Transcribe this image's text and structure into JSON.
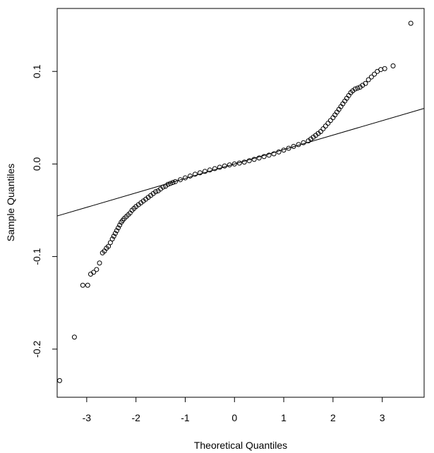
{
  "chart_data": {
    "type": "scatter",
    "title": "",
    "xlabel": "Theoretical Quantiles",
    "ylabel": "Sample Quantiles",
    "xlim": [
      -3.6,
      3.85
    ],
    "ylim": [
      -0.252,
      0.168
    ],
    "x_ticks": [
      -3,
      -2,
      -1,
      0,
      1,
      2,
      3
    ],
    "x_tick_labels": [
      "-3",
      "-2",
      "-1",
      "0",
      "1",
      "2",
      "3"
    ],
    "y_ticks": [
      -0.2,
      -0.1,
      0.0,
      0.1
    ],
    "y_tick_labels": [
      "-0.2",
      "-0.1",
      "0.0",
      "0.1"
    ],
    "grid": false,
    "legend": "none",
    "reference_line": {
      "label": "qq-line",
      "slope": 0.0156,
      "intercept": 0.0
    },
    "points": [
      [
        -3.55,
        -0.234
      ],
      [
        -3.25,
        -0.187
      ],
      [
        -3.08,
        -0.131
      ],
      [
        -2.98,
        -0.131
      ],
      [
        -2.92,
        -0.119
      ],
      [
        -2.86,
        -0.117
      ],
      [
        -2.8,
        -0.114
      ],
      [
        -2.74,
        -0.107
      ],
      [
        -2.68,
        -0.096
      ],
      [
        -2.64,
        -0.094
      ],
      [
        -2.6,
        -0.091
      ],
      [
        -2.56,
        -0.089
      ],
      [
        -2.52,
        -0.085
      ],
      [
        -2.48,
        -0.081
      ],
      [
        -2.45,
        -0.078
      ],
      [
        -2.42,
        -0.075
      ],
      [
        -2.39,
        -0.072
      ],
      [
        -2.36,
        -0.069
      ],
      [
        -2.33,
        -0.066
      ],
      [
        -2.3,
        -0.063
      ],
      [
        -2.27,
        -0.061
      ],
      [
        -2.24,
        -0.059
      ],
      [
        -2.2,
        -0.057
      ],
      [
        -2.16,
        -0.055
      ],
      [
        -2.12,
        -0.053
      ],
      [
        -2.08,
        -0.05
      ],
      [
        -2.04,
        -0.048
      ],
      [
        -2.0,
        -0.046
      ],
      [
        -1.95,
        -0.044
      ],
      [
        -1.9,
        -0.042
      ],
      [
        -1.85,
        -0.04
      ],
      [
        -1.8,
        -0.038
      ],
      [
        -1.75,
        -0.036
      ],
      [
        -1.7,
        -0.034
      ],
      [
        -1.65,
        -0.032
      ],
      [
        -1.6,
        -0.03
      ],
      [
        -1.55,
        -0.029
      ],
      [
        -1.5,
        -0.027
      ],
      [
        -1.45,
        -0.025
      ],
      [
        -1.4,
        -0.024
      ],
      [
        -1.35,
        -0.022
      ],
      [
        -1.3,
        -0.021
      ],
      [
        -1.25,
        -0.02
      ],
      [
        -1.2,
        -0.019
      ],
      [
        -1.1,
        -0.017
      ],
      [
        -1.0,
        -0.015
      ],
      [
        -0.9,
        -0.013
      ],
      [
        -0.8,
        -0.011
      ],
      [
        -0.7,
        -0.0095
      ],
      [
        -0.6,
        -0.008
      ],
      [
        -0.5,
        -0.0065
      ],
      [
        -0.4,
        -0.005
      ],
      [
        -0.3,
        -0.0035
      ],
      [
        -0.2,
        -0.0022
      ],
      [
        -0.1,
        -0.001
      ],
      [
        0.0,
        0.0
      ],
      [
        0.1,
        0.001
      ],
      [
        0.2,
        0.002
      ],
      [
        0.3,
        0.0035
      ],
      [
        0.4,
        0.005
      ],
      [
        0.5,
        0.0065
      ],
      [
        0.6,
        0.008
      ],
      [
        0.7,
        0.0095
      ],
      [
        0.8,
        0.011
      ],
      [
        0.9,
        0.013
      ],
      [
        1.0,
        0.015
      ],
      [
        1.1,
        0.017
      ],
      [
        1.2,
        0.019
      ],
      [
        1.3,
        0.021
      ],
      [
        1.4,
        0.023
      ],
      [
        1.5,
        0.025
      ],
      [
        1.55,
        0.027
      ],
      [
        1.6,
        0.029
      ],
      [
        1.65,
        0.031
      ],
      [
        1.7,
        0.033
      ],
      [
        1.75,
        0.035
      ],
      [
        1.8,
        0.038
      ],
      [
        1.85,
        0.041
      ],
      [
        1.9,
        0.044
      ],
      [
        1.95,
        0.047
      ],
      [
        2.0,
        0.05
      ],
      [
        2.04,
        0.053
      ],
      [
        2.08,
        0.056
      ],
      [
        2.12,
        0.059
      ],
      [
        2.16,
        0.062
      ],
      [
        2.2,
        0.065
      ],
      [
        2.24,
        0.068
      ],
      [
        2.28,
        0.071
      ],
      [
        2.32,
        0.074
      ],
      [
        2.36,
        0.077
      ],
      [
        2.4,
        0.079
      ],
      [
        2.45,
        0.081
      ],
      [
        2.5,
        0.082
      ],
      [
        2.55,
        0.083
      ],
      [
        2.6,
        0.085
      ],
      [
        2.66,
        0.087
      ],
      [
        2.72,
        0.091
      ],
      [
        2.78,
        0.094
      ],
      [
        2.84,
        0.097
      ],
      [
        2.9,
        0.1
      ],
      [
        2.97,
        0.102
      ],
      [
        3.05,
        0.103
      ],
      [
        3.22,
        0.106
      ],
      [
        3.58,
        0.152
      ]
    ]
  }
}
